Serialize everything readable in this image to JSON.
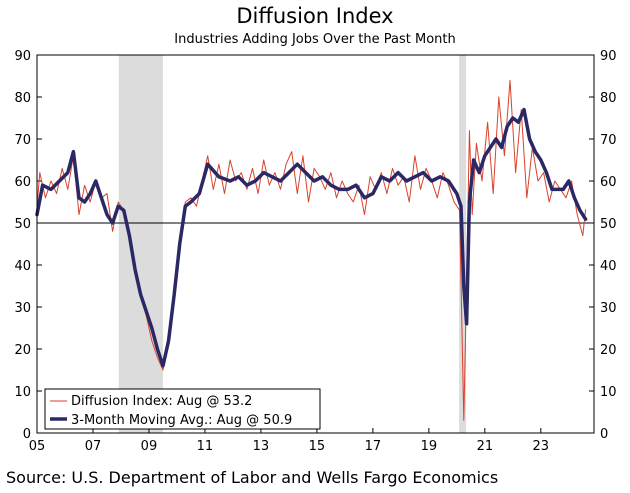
{
  "chart_data": {
    "type": "line",
    "title": "Diffusion Index",
    "subtitle": "Industries Adding Jobs Over the Past Month",
    "source": "Source: U.S. Department of Labor and Wells Fargo Economics",
    "ylim": [
      0,
      90
    ],
    "y_ticks": [
      0,
      10,
      20,
      30,
      40,
      50,
      60,
      70,
      80,
      90
    ],
    "xlim": [
      2005.0,
      2024.9
    ],
    "x_tick_values": [
      2005,
      2007,
      2009,
      2011,
      2013,
      2015,
      2017,
      2019,
      2021,
      2023
    ],
    "x_tick_labels": [
      "05",
      "07",
      "09",
      "11",
      "13",
      "15",
      "17",
      "19",
      "21",
      "23"
    ],
    "reference_line": 50,
    "recessions": [
      [
        2007.92,
        2009.5
      ],
      [
        2020.08,
        2020.33
      ]
    ],
    "colors": {
      "diffusion": "#d9422b",
      "moving_avg": "#2b2866",
      "recession": "#dcdcdc"
    },
    "series": [
      {
        "name": "Diffusion Index: Aug @ 53.2",
        "style": "thin",
        "x": [
          2005.0,
          2005.1,
          2005.3,
          2005.5,
          2005.7,
          2005.9,
          2006.1,
          2006.3,
          2006.5,
          2006.7,
          2006.9,
          2007.1,
          2007.3,
          2007.5,
          2007.7,
          2007.9,
          2008.1,
          2008.3,
          2008.5,
          2008.7,
          2008.9,
          2009.1,
          2009.3,
          2009.5,
          2009.7,
          2009.9,
          2010.1,
          2010.3,
          2010.5,
          2010.7,
          2010.9,
          2011.1,
          2011.3,
          2011.5,
          2011.7,
          2011.9,
          2012.1,
          2012.3,
          2012.5,
          2012.7,
          2012.9,
          2013.1,
          2013.3,
          2013.5,
          2013.7,
          2013.9,
          2014.1,
          2014.3,
          2014.5,
          2014.7,
          2014.9,
          2015.1,
          2015.3,
          2015.5,
          2015.7,
          2015.9,
          2016.1,
          2016.3,
          2016.5,
          2016.7,
          2016.9,
          2017.1,
          2017.3,
          2017.5,
          2017.7,
          2017.9,
          2018.1,
          2018.3,
          2018.5,
          2018.7,
          2018.9,
          2019.1,
          2019.3,
          2019.5,
          2019.7,
          2019.9,
          2020.1,
          2020.25,
          2020.33,
          2020.45,
          2020.55,
          2020.7,
          2020.9,
          2021.1,
          2021.3,
          2021.5,
          2021.7,
          2021.9,
          2022.1,
          2022.3,
          2022.5,
          2022.7,
          2022.9,
          2023.1,
          2023.3,
          2023.5,
          2023.7,
          2023.9,
          2024.1,
          2024.3,
          2024.5,
          2024.6
        ],
        "values": [
          54,
          62,
          56,
          60,
          57,
          63,
          58,
          66,
          52,
          59,
          55,
          60,
          56,
          57,
          48,
          55,
          53,
          48,
          38,
          33,
          28,
          22,
          18,
          15,
          24,
          32,
          45,
          55,
          56,
          54,
          60,
          66,
          58,
          64,
          57,
          65,
          60,
          62,
          58,
          63,
          57,
          65,
          59,
          62,
          58,
          64,
          67,
          57,
          66,
          55,
          63,
          61,
          58,
          62,
          56,
          60,
          57,
          55,
          59,
          52,
          61,
          58,
          62,
          57,
          63,
          59,
          61,
          55,
          66,
          58,
          63,
          60,
          56,
          62,
          59,
          55,
          53,
          3,
          30,
          72,
          52,
          69,
          60,
          74,
          57,
          80,
          66,
          84,
          62,
          77,
          56,
          68,
          60,
          62,
          55,
          60,
          58,
          56,
          60,
          52,
          47,
          53.2
        ]
      },
      {
        "name": "3-Month Moving Avg.: Aug @ 50.9",
        "style": "thick",
        "x": [
          2005.0,
          2005.2,
          2005.5,
          2005.8,
          2006.1,
          2006.3,
          2006.5,
          2006.7,
          2006.9,
          2007.1,
          2007.3,
          2007.5,
          2007.7,
          2007.9,
          2008.1,
          2008.3,
          2008.5,
          2008.7,
          2008.9,
          2009.1,
          2009.3,
          2009.5,
          2009.7,
          2009.9,
          2010.1,
          2010.3,
          2010.5,
          2010.8,
          2011.1,
          2011.5,
          2011.9,
          2012.2,
          2012.5,
          2012.8,
          2013.1,
          2013.4,
          2013.7,
          2014.0,
          2014.3,
          2014.6,
          2014.9,
          2015.2,
          2015.5,
          2015.8,
          2016.1,
          2016.4,
          2016.7,
          2017.0,
          2017.3,
          2017.6,
          2017.9,
          2018.2,
          2018.5,
          2018.8,
          2019.1,
          2019.4,
          2019.7,
          2020.0,
          2020.15,
          2020.25,
          2020.35,
          2020.45,
          2020.6,
          2020.8,
          2021.0,
          2021.2,
          2021.4,
          2021.6,
          2021.8,
          2022.0,
          2022.2,
          2022.4,
          2022.6,
          2022.8,
          2023.0,
          2023.2,
          2023.4,
          2023.6,
          2023.8,
          2024.0,
          2024.2,
          2024.4,
          2024.6
        ],
        "values": [
          52,
          59,
          58,
          60,
          62,
          67,
          56,
          55,
          57,
          60,
          56,
          52,
          50,
          54,
          53,
          47,
          39,
          33,
          29,
          25,
          20,
          16,
          22,
          33,
          45,
          54,
          55,
          57,
          64,
          61,
          60,
          61,
          59,
          60,
          62,
          61,
          60,
          62,
          64,
          62,
          60,
          61,
          59,
          58,
          58,
          59,
          56,
          57,
          61,
          60,
          62,
          60,
          61,
          62,
          60,
          61,
          60,
          57,
          54,
          35,
          26,
          55,
          65,
          62,
          66,
          68,
          70,
          68,
          73,
          75,
          74,
          77,
          70,
          67,
          65,
          62,
          58,
          58,
          58,
          60,
          56,
          53,
          50.9
        ]
      }
    ],
    "legend": {
      "position": "bottom-left",
      "entries": [
        "Diffusion Index: Aug @ 53.2",
        "3-Month Moving Avg.: Aug @ 50.9"
      ]
    }
  }
}
